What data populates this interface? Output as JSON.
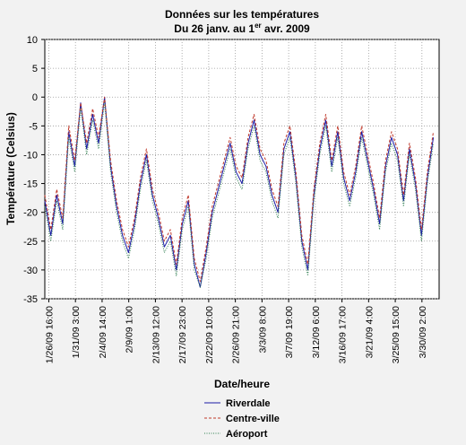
{
  "chart_data": {
    "type": "line",
    "title": "Données sur les températures",
    "subtitle_prefix": "Du 26 janv. au 1",
    "subtitle_sup": "er",
    "subtitle_suffix": " avr. 2009",
    "xlabel": "Date/heure",
    "ylabel": "Température (Celsius)",
    "ylim": [
      -35,
      10
    ],
    "yticks": [
      10,
      5,
      0,
      -5,
      -10,
      -15,
      -20,
      -25,
      -30,
      -35
    ],
    "xlim": [
      "1/26/09 00:00",
      "4/1/09 23:00"
    ],
    "xtick_labels": [
      "1/26/09 16:00",
      "1/31/09 3:00",
      "2/4/09 14:00",
      "2/9/09 1:00",
      "2/13/09 12:00",
      "2/17/09 23:00",
      "2/22/09 10:00",
      "2/26/09 21:00",
      "3/3/09 8:00",
      "3/7/09 19:00",
      "3/12/09 6:00",
      "3/16/09 17:00",
      "3/21/09 4:00",
      "3/25/09 15:00",
      "3/30/09 2:00"
    ],
    "grid": true,
    "legend_position": "bottom-center",
    "x_dates": [
      "1/26/09 00:00",
      "1/27/09 00:00",
      "1/28/09 00:00",
      "1/29/09 00:00",
      "1/30/09 00:00",
      "1/31/09 00:00",
      "2/1/09 00:00",
      "2/2/09 00:00",
      "2/3/09 00:00",
      "2/4/09 00:00",
      "2/5/09 00:00",
      "2/6/09 00:00",
      "2/7/09 00:00",
      "2/8/09 00:00",
      "2/9/09 00:00",
      "2/10/09 00:00",
      "2/11/09 00:00",
      "2/12/09 00:00",
      "2/13/09 00:00",
      "2/14/09 00:00",
      "2/15/09 00:00",
      "2/16/09 00:00",
      "2/17/09 00:00",
      "2/18/09 00:00",
      "2/19/09 00:00",
      "2/20/09 00:00",
      "2/21/09 00:00",
      "2/22/09 00:00",
      "2/23/09 00:00",
      "2/24/09 00:00",
      "2/25/09 00:00",
      "2/26/09 00:00",
      "2/27/09 00:00",
      "2/28/09 00:00",
      "3/1/09 00:00",
      "3/2/09 00:00",
      "3/3/09 00:00",
      "3/4/09 00:00",
      "3/5/09 00:00",
      "3/6/09 00:00",
      "3/7/09 00:00",
      "3/8/09 00:00",
      "3/9/09 00:00",
      "3/10/09 00:00",
      "3/11/09 00:00",
      "3/12/09 00:00",
      "3/13/09 00:00",
      "3/14/09 00:00",
      "3/15/09 00:00",
      "3/16/09 00:00",
      "3/17/09 00:00",
      "3/18/09 00:00",
      "3/19/09 00:00",
      "3/20/09 00:00",
      "3/21/09 00:00",
      "3/22/09 00:00",
      "3/23/09 00:00",
      "3/24/09 00:00",
      "3/25/09 00:00",
      "3/26/09 00:00",
      "3/27/09 00:00",
      "3/28/09 00:00",
      "3/29/09 00:00",
      "3/30/09 00:00",
      "3/31/09 00:00",
      "4/1/09 00:00"
    ],
    "series": [
      {
        "name": "Riverdale",
        "color": "#1a1aa6",
        "dash": "solid",
        "values": [
          -18,
          -24,
          -17,
          -22,
          -6,
          -12,
          -1,
          -9,
          -3,
          -8,
          0,
          -12,
          -19,
          -24,
          -27,
          -22,
          -15,
          -10,
          -17,
          -21,
          -26,
          -24,
          -30,
          -22,
          -18,
          -29,
          -33,
          -27,
          -20,
          -16,
          -12,
          -8,
          -13,
          -15,
          -8,
          -4,
          -10,
          -12,
          -17,
          -20,
          -9,
          -6,
          -14,
          -25,
          -30,
          -17,
          -9,
          -4,
          -12,
          -6,
          -14,
          -18,
          -13,
          -6,
          -11,
          -16,
          -22,
          -12,
          -7,
          -10,
          -18,
          -9,
          -15,
          -24,
          -14,
          -7
        ]
      },
      {
        "name": "Centre-ville",
        "color": "#c0392b",
        "dash": "dashed",
        "values": [
          -17,
          -23,
          -16,
          -21,
          -5,
          -11,
          -1,
          -8,
          -2,
          -7,
          0,
          -11,
          -18,
          -23,
          -26,
          -21,
          -14,
          -9,
          -16,
          -20,
          -25,
          -23,
          -29,
          -21,
          -17,
          -28,
          -32,
          -26,
          -19,
          -15,
          -11,
          -7,
          -12,
          -14,
          -7,
          -3,
          -9,
          -11,
          -16,
          -19,
          -8,
          -5,
          -13,
          -24,
          -29,
          -16,
          -8,
          -3,
          -11,
          -5,
          -13,
          -17,
          -12,
          -5,
          -10,
          -15,
          -21,
          -11,
          -6,
          -9,
          -17,
          -8,
          -14,
          -23,
          -13,
          -6
        ]
      },
      {
        "name": "Aéroport",
        "color": "#2e7d4f",
        "dash": "dotted",
        "values": [
          -19,
          -25,
          -18,
          -23,
          -7,
          -13,
          -2,
          -10,
          -4,
          -9,
          -1,
          -13,
          -20,
          -25,
          -28,
          -23,
          -16,
          -11,
          -18,
          -22,
          -27,
          -25,
          -31,
          -23,
          -19,
          -30,
          -33,
          -28,
          -21,
          -17,
          -13,
          -9,
          -14,
          -16,
          -9,
          -5,
          -11,
          -13,
          -18,
          -21,
          -10,
          -7,
          -15,
          -26,
          -31,
          -18,
          -10,
          -5,
          -13,
          -7,
          -15,
          -19,
          -14,
          -7,
          -12,
          -17,
          -23,
          -13,
          -8,
          -11,
          -19,
          -10,
          -16,
          -25,
          -15,
          -8
        ]
      }
    ]
  }
}
